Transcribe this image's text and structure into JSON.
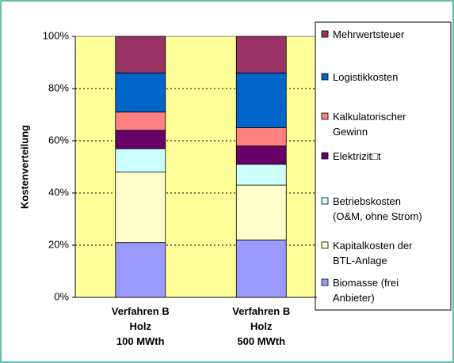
{
  "chart_data": {
    "type": "bar",
    "stacked": true,
    "ylabel": "Kostenverteilung",
    "categories": [
      "Verfahren B\nHolz\n100 MWth",
      "Verfahren B\nHolz\n500 MWth"
    ],
    "series": [
      {
        "name": "Biomasse (frei\nAnbieter)",
        "color": "#9999ff",
        "values": [
          21,
          22
        ]
      },
      {
        "name": "Kapitalkosten der\nBTL-Anlage",
        "color": "#ffffcc",
        "values": [
          27,
          21
        ]
      },
      {
        "name": "Betriebskosten\n(O&M, ohne Strom)",
        "color": "#ccffff",
        "values": [
          9,
          8
        ]
      },
      {
        "name": "Elektrizit□t",
        "color": "#660066",
        "values": [
          7,
          7
        ]
      },
      {
        "name": "Kalkulatorischer\nGewinn",
        "color": "#ff8080",
        "values": [
          7,
          7
        ]
      },
      {
        "name": "Logistikkosten",
        "color": "#0066cc",
        "values": [
          15,
          21
        ]
      },
      {
        "name": "Mehrwertsteuer",
        "color": "#993366",
        "values": [
          14,
          14
        ]
      }
    ],
    "ylim": [
      0,
      100
    ],
    "yticks": [
      {
        "value": 0,
        "label": "0%"
      },
      {
        "value": 20,
        "label": "20%"
      },
      {
        "value": 40,
        "label": "40%"
      },
      {
        "value": 60,
        "label": "60%"
      },
      {
        "value": 80,
        "label": "80%"
      },
      {
        "value": 100,
        "label": "100%"
      }
    ],
    "grid": true,
    "legend": "right",
    "plot_color": "#ffff99"
  }
}
